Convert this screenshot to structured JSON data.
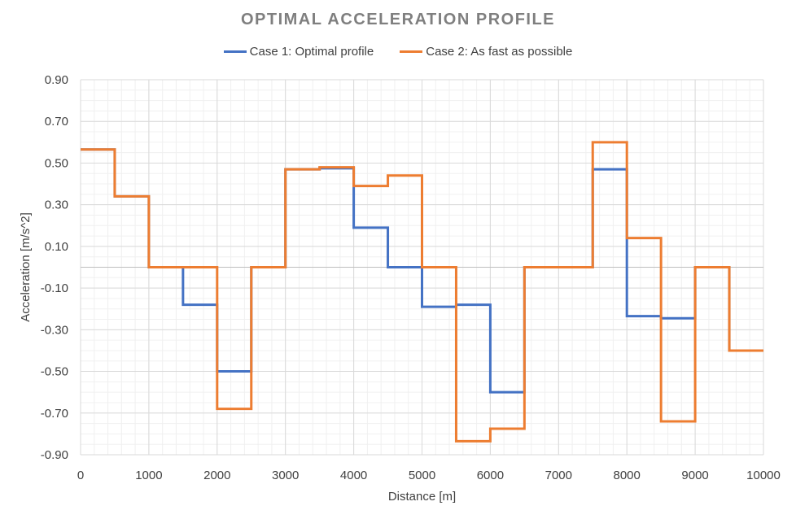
{
  "chart_data": {
    "type": "line",
    "title": "OPTIMAL ACCELERATION PROFILE",
    "xlabel": "Distance [m]",
    "ylabel": "Acceleration [m/s^2]",
    "xlim": [
      0,
      10000
    ],
    "ylim": [
      -0.9,
      0.9
    ],
    "xticks": [
      "0",
      "1000",
      "2000",
      "3000",
      "4000",
      "5000",
      "6000",
      "7000",
      "8000",
      "9000",
      "10000"
    ],
    "yticks": [
      "0.90",
      "0.70",
      "0.50",
      "0.30",
      "0.10",
      "-0.10",
      "-0.30",
      "-0.50",
      "-0.70",
      "-0.90"
    ],
    "grid": "major and minor",
    "legend_position": "top",
    "line_style": "step",
    "series": [
      {
        "name": "Case 1: Optimal profile",
        "color": "#4472c4",
        "x": [
          0,
          500,
          1000,
          1500,
          2000,
          2500,
          3000,
          3500,
          4000,
          4500,
          5000,
          5500,
          6000,
          6500,
          7000,
          7500,
          8000,
          8500,
          9000,
          9500,
          10000
        ],
        "values": [
          0.565,
          0.34,
          0.0,
          -0.18,
          -0.5,
          0.0,
          0.47,
          0.475,
          0.19,
          0.0,
          -0.19,
          -0.18,
          -0.6,
          0.0,
          0.0,
          0.47,
          -0.235,
          -0.245,
          0.0,
          -0.4,
          -0.4
        ]
      },
      {
        "name": "Case 2: As fast as possible",
        "color": "#ed7d31",
        "x": [
          0,
          500,
          1000,
          1500,
          2000,
          2500,
          3000,
          3500,
          4000,
          4500,
          5000,
          5500,
          6000,
          6500,
          7000,
          7500,
          8000,
          8500,
          9000,
          9500,
          10000
        ],
        "values": [
          0.565,
          0.34,
          0.0,
          0.0,
          -0.68,
          0.0,
          0.47,
          0.48,
          0.39,
          0.44,
          0.0,
          -0.835,
          -0.775,
          0.0,
          0.0,
          0.6,
          0.14,
          -0.74,
          0.0,
          -0.4,
          -0.4
        ]
      }
    ]
  }
}
